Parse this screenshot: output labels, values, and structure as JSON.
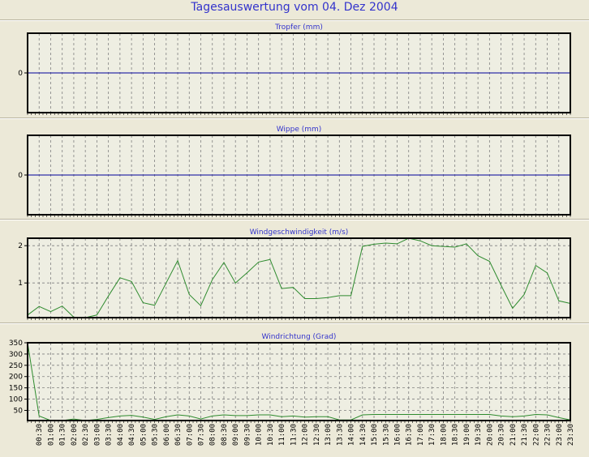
{
  "title": "Tagesauswertung vom 04. Dez 2004",
  "colors": {
    "background": "#ece9d8",
    "title": "#3333cc",
    "zero_line": "#000099",
    "series": "#2e8b2e",
    "grid": "#808080"
  },
  "x_tick_labels": [
    "00:30",
    "01:00",
    "01:30",
    "02:00",
    "02:30",
    "03:00",
    "03:30",
    "04:00",
    "04:30",
    "05:00",
    "05:30",
    "06:00",
    "06:30",
    "07:00",
    "07:30",
    "08:00",
    "08:30",
    "09:00",
    "09:30",
    "10:00",
    "10:30",
    "11:00",
    "11:30",
    "12:00",
    "12:30",
    "13:00",
    "13:30",
    "14:00",
    "14:30",
    "15:00",
    "15:30",
    "16:00",
    "16:30",
    "17:00",
    "17:30",
    "18:00",
    "18:30",
    "19:00",
    "19:30",
    "20:00",
    "20:30",
    "21:00",
    "21:30",
    "22:00",
    "22:30",
    "23:00",
    "23:30"
  ],
  "chart_data": [
    {
      "type": "line",
      "title": "Tropfer (mm)",
      "xlim": [
        "00:00",
        "23:30"
      ],
      "ylim": [
        -1,
        1
      ],
      "yticks": [
        0
      ],
      "grid": true,
      "values": []
    },
    {
      "type": "line",
      "title": "Wippe (mm)",
      "xlim": [
        "00:00",
        "23:30"
      ],
      "ylim": [
        -1,
        1
      ],
      "yticks": [
        0
      ],
      "grid": true,
      "values": []
    },
    {
      "type": "line",
      "title": "Windgeschwindigkeit (m/s)",
      "xlim": [
        "00:00",
        "23:30"
      ],
      "ylim": [
        0.07,
        2.2
      ],
      "yticks": [
        1,
        2
      ],
      "grid": true,
      "values": [
        0.14,
        0.37,
        0.23,
        0.38,
        0.08,
        0.05,
        0.14,
        0.65,
        1.14,
        1.04,
        0.47,
        0.4,
        1.0,
        1.6,
        0.69,
        0.39,
        1.09,
        1.55,
        1.0,
        1.27,
        1.56,
        1.63,
        0.85,
        0.88,
        0.58,
        0.58,
        0.61,
        0.66,
        0.66,
        1.98,
        2.04,
        2.07,
        2.05,
        2.2,
        2.13,
        2.0,
        1.98,
        1.96,
        2.05,
        1.73,
        1.58,
        0.94,
        0.32,
        0.69,
        1.47,
        1.27,
        0.52,
        0.45
      ]
    },
    {
      "type": "line",
      "title": "Windrichtung (Grad)",
      "xlim": [
        "00:00",
        "23:30"
      ],
      "ylim": [
        5,
        350
      ],
      "yticks": [
        50,
        100,
        150,
        200,
        250,
        300,
        350
      ],
      "grid": true,
      "values": [
        350,
        25,
        5,
        5,
        12,
        5,
        10,
        18,
        25,
        28,
        20,
        10,
        22,
        30,
        25,
        12,
        25,
        30,
        27,
        27,
        30,
        30,
        22,
        25,
        20,
        22,
        22,
        8,
        8,
        30,
        32,
        32,
        32,
        32,
        32,
        32,
        32,
        32,
        32,
        32,
        32,
        25,
        22,
        25,
        32,
        30,
        18,
        8
      ]
    }
  ]
}
